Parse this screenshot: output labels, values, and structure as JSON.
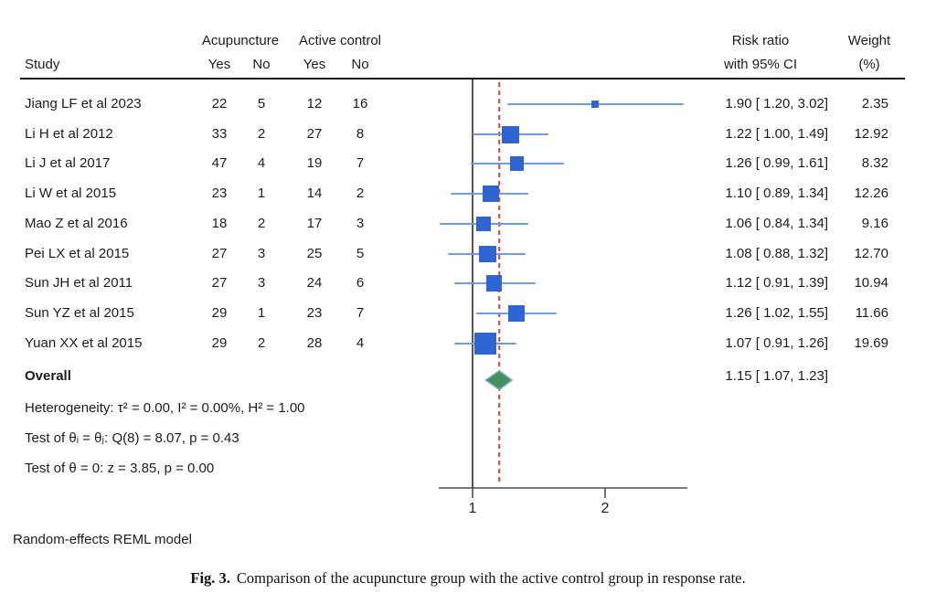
{
  "figure": {
    "header": {
      "study": "Study",
      "group1": "Acupuncture",
      "group2": "Active control",
      "yes1": "Yes",
      "no1": "No",
      "yes2": "Yes",
      "no2": "No",
      "rr_line1": "Risk ratio",
      "rr_line2": "with 95% CI",
      "weight_line1": "Weight",
      "weight_line2": "(%)"
    },
    "overall_label": "Overall",
    "stats": {
      "heterogeneity": "Heterogeneity: τ² = 0.00, I² = 0.00%, H² = 1.00",
      "test_theta_ij": "Test of θᵢ = θⱼ: Q(8) = 8.07, p = 0.43",
      "test_theta_zero": "Test of θ = 0: z = 3.85, p = 0.00"
    },
    "footnote": "Random-effects REML model",
    "caption_label": "Fig. 3.",
    "caption_text": "Comparison of the acupuncture group with the active control group in response rate."
  },
  "chart_data": {
    "type": "forest",
    "effect_measure": "Risk ratio",
    "x_scale": "log",
    "x_ticks": [
      "1",
      "2"
    ],
    "reference_value": 1,
    "axis_range": [
      0.84,
      3.08
    ],
    "studies": [
      {
        "study": "Jiang LF et al 2023",
        "acu_yes": "22",
        "acu_no": "5",
        "ctrl_yes": "12",
        "ctrl_no": "16",
        "rr": 1.9,
        "ci_low": 1.2,
        "ci_high": 3.02,
        "rr_label": "1.90 [ 1.20, 3.02]",
        "weight": 2.35,
        "weight_label": "2.35"
      },
      {
        "study": "Li H et al 2012",
        "acu_yes": "33",
        "acu_no": "2",
        "ctrl_yes": "27",
        "ctrl_no": "8",
        "rr": 1.22,
        "ci_low": 1.0,
        "ci_high": 1.49,
        "rr_label": "1.22 [ 1.00, 1.49]",
        "weight": 12.92,
        "weight_label": "12.92"
      },
      {
        "study": "Li J et al 2017",
        "acu_yes": "47",
        "acu_no": "4",
        "ctrl_yes": "19",
        "ctrl_no": "7",
        "rr": 1.26,
        "ci_low": 0.99,
        "ci_high": 1.61,
        "rr_label": "1.26 [ 0.99, 1.61]",
        "weight": 8.32,
        "weight_label": "8.32"
      },
      {
        "study": "Li W et al 2015",
        "acu_yes": "23",
        "acu_no": "1",
        "ctrl_yes": "14",
        "ctrl_no": "2",
        "rr": 1.1,
        "ci_low": 0.89,
        "ci_high": 1.34,
        "rr_label": "1.10 [ 0.89, 1.34]",
        "weight": 12.26,
        "weight_label": "12.26"
      },
      {
        "study": "Mao Z et al 2016",
        "acu_yes": "18",
        "acu_no": "2",
        "ctrl_yes": "17",
        "ctrl_no": "3",
        "rr": 1.06,
        "ci_low": 0.84,
        "ci_high": 1.34,
        "rr_label": "1.06 [ 0.84, 1.34]",
        "weight": 9.16,
        "weight_label": "9.16"
      },
      {
        "study": "Pei LX et al 2015",
        "acu_yes": "27",
        "acu_no": "3",
        "ctrl_yes": "25",
        "ctrl_no": "5",
        "rr": 1.08,
        "ci_low": 0.88,
        "ci_high": 1.32,
        "rr_label": "1.08 [ 0.88, 1.32]",
        "weight": 12.7,
        "weight_label": "12.70"
      },
      {
        "study": "Sun JH et al 2011",
        "acu_yes": "27",
        "acu_no": "3",
        "ctrl_yes": "24",
        "ctrl_no": "6",
        "rr": 1.12,
        "ci_low": 0.91,
        "ci_high": 1.39,
        "rr_label": "1.12 [ 0.91, 1.39]",
        "weight": 10.94,
        "weight_label": "10.94"
      },
      {
        "study": "Sun YZ et al 2015",
        "acu_yes": "29",
        "acu_no": "1",
        "ctrl_yes": "23",
        "ctrl_no": "7",
        "rr": 1.26,
        "ci_low": 1.02,
        "ci_high": 1.55,
        "rr_label": "1.26 [ 1.02, 1.55]",
        "weight": 11.66,
        "weight_label": "11.66"
      },
      {
        "study": "Yuan XX et al 2015",
        "acu_yes": "29",
        "acu_no": "2",
        "ctrl_yes": "28",
        "ctrl_no": "4",
        "rr": 1.07,
        "ci_low": 0.91,
        "ci_high": 1.26,
        "rr_label": "1.07 [ 0.91, 1.26]",
        "weight": 19.69,
        "weight_label": "19.69"
      }
    ],
    "overall": {
      "rr": 1.15,
      "ci_low": 1.07,
      "ci_high": 1.23,
      "rr_label": "1.15 [ 1.07, 1.23]"
    },
    "colors": {
      "marker": "#2f65d0",
      "ci_line": "#6d9bea",
      "diamond_fill": "#46925f",
      "diamond_stroke": "#8fb0cc",
      "reference_line": "#2b2b2b",
      "overall_dashed": "#e03b3b",
      "axis": "#4d4d4d"
    }
  }
}
